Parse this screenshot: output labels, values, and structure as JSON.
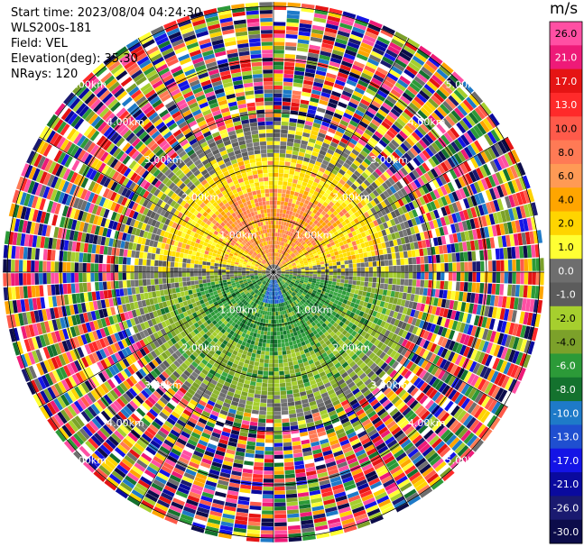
{
  "header": {
    "start_time": "Start time: 2023/08/04 04:24:30",
    "instrument": "WLS200s-181",
    "field": "Field: VEL",
    "elevation": "Elevation(deg): 35.30",
    "nrays": "NRays: 120"
  },
  "colorbar": {
    "unit": "m/s",
    "ticks": [
      "26.0",
      "21.0",
      "17.0",
      "13.0",
      "10.0",
      "8.0",
      "6.0",
      "4.0",
      "2.0",
      "1.0",
      "0.0",
      "-1.0",
      "-2.0",
      "-4.0",
      "-6.0",
      "-8.0",
      "-10.0",
      "-13.0",
      "-17.0",
      "-21.0",
      "-26.0",
      "-30.0"
    ],
    "colors": [
      "#ff4fa3",
      "#ee1a78",
      "#e51414",
      "#ff2a2a",
      "#ff5a4a",
      "#ff7a55",
      "#ff9a55",
      "#ffa500",
      "#ffd400",
      "#ffff33",
      "#6e6e6e",
      "#5c5c5c",
      "#a6cf2e",
      "#7ca12a",
      "#2c9a38",
      "#14722e",
      "#1e7ac8",
      "#1f4fd0",
      "#1414e6",
      "#0a0a9e",
      "#1a1a70",
      "#0c0c4a"
    ]
  },
  "ring_labels": [
    "1.00km",
    "2.00km",
    "3.00km",
    "4.00km",
    "5.00km"
  ],
  "map": {
    "rays": 120,
    "background": "#ffffff"
  }
}
